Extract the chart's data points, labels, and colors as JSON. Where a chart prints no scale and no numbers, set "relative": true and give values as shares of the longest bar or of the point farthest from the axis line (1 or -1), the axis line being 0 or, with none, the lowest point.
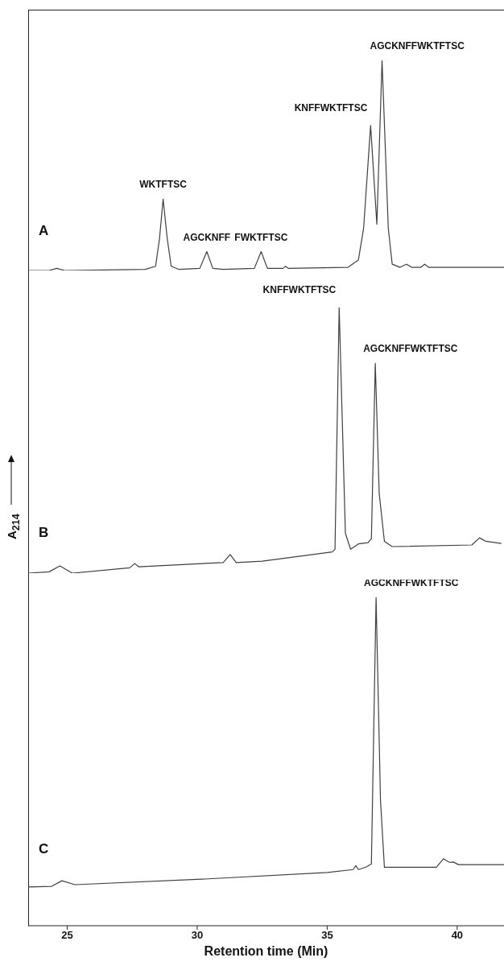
{
  "chart_data": [
    {
      "type": "line",
      "relative": true,
      "xlim": [
        23.5,
        41.8
      ],
      "tick_labels": false,
      "series": [
        {
          "name": "A",
          "color": "#404040",
          "x": [
            23.5,
            24.3,
            24.6,
            24.9,
            28.0,
            28.4,
            28.55,
            28.69,
            28.85,
            29.0,
            29.3,
            30.1,
            30.37,
            30.6,
            31.0,
            32.2,
            32.46,
            32.7,
            33.3,
            33.4,
            33.5,
            35.8,
            36.2,
            36.4,
            36.67,
            36.91,
            37.11,
            37.35,
            37.5,
            37.8,
            38.05,
            38.25,
            38.6,
            38.75,
            38.9,
            41.8
          ],
          "values": [
            0.0,
            0.0,
            0.01,
            0.0,
            0.005,
            0.02,
            0.15,
            0.34,
            0.15,
            0.02,
            0.005,
            0.01,
            0.09,
            0.01,
            0.005,
            0.01,
            0.09,
            0.01,
            0.01,
            0.02,
            0.01,
            0.015,
            0.05,
            0.2,
            0.69,
            0.22,
            1.0,
            0.2,
            0.03,
            0.015,
            0.03,
            0.015,
            0.015,
            0.03,
            0.015,
            0.015
          ]
        }
      ],
      "annotations": [
        {
          "text": "WKTFTSC",
          "x": 28.69,
          "y": 0.34
        },
        {
          "text": "AGCKNFF",
          "x": 30.37,
          "y": 0.09
        },
        {
          "text": "FWKTFTSC",
          "x": 32.46,
          "y": 0.09
        },
        {
          "text": "KNFFWKTFTSC",
          "x": 36.67,
          "y": 0.69
        },
        {
          "text": "AGCKNFFWKTFTSC",
          "x": 37.11,
          "y": 1.0
        }
      ]
    },
    {
      "type": "line",
      "relative": true,
      "xlim": [
        23.5,
        41.8
      ],
      "tick_labels": false,
      "ylabel": "A$_{214}$",
      "series": [
        {
          "name": "B",
          "color": "#404040",
          "x": [
            23.5,
            24.3,
            24.72,
            25.2,
            27.4,
            27.6,
            27.75,
            31.0,
            31.27,
            31.5,
            32.5,
            35.2,
            35.3,
            35.46,
            35.7,
            35.9,
            36.2,
            36.57,
            36.7,
            36.85,
            37.0,
            37.2,
            37.5,
            40.56,
            40.86,
            41.1,
            41.7
          ],
          "values": [
            0.0,
            0.005,
            0.027,
            0.0,
            0.02,
            0.036,
            0.024,
            0.04,
            0.07,
            0.04,
            0.045,
            0.08,
            0.09,
            1.0,
            0.15,
            0.09,
            0.11,
            0.115,
            0.13,
            0.79,
            0.3,
            0.12,
            0.1,
            0.106,
            0.133,
            0.12,
            0.112
          ]
        }
      ],
      "annotations": [
        {
          "text": "KNFFWKTFTSC",
          "x": 35.46,
          "y": 1.0
        },
        {
          "text": "AGCKNFFWKTFTSC",
          "x": 36.85,
          "y": 0.79
        }
      ]
    },
    {
      "type": "line",
      "relative": true,
      "xlim": [
        23.5,
        41.8
      ],
      "tick_labels": "x",
      "xlabel": "Retention time (Min)",
      "xticks": [
        25,
        30,
        35,
        40
      ],
      "series": [
        {
          "name": "C",
          "color": "#404040",
          "x": [
            23.5,
            24.4,
            24.8,
            25.3,
            30.0,
            35.0,
            36.0,
            36.1,
            36.2,
            36.5,
            36.7,
            36.88,
            37.05,
            37.2,
            39.2,
            39.47,
            39.7,
            39.85,
            40.05,
            41.8
          ],
          "values": [
            0.118,
            0.12,
            0.137,
            0.125,
            0.141,
            0.162,
            0.171,
            0.183,
            0.171,
            0.179,
            0.188,
            1.0,
            0.382,
            0.178,
            0.178,
            0.204,
            0.193,
            0.194,
            0.186,
            0.186
          ]
        }
      ],
      "annotations": [
        {
          "text": "AGCKNFFWKTFTSC",
          "x": 36.88,
          "y": 1.0
        }
      ]
    }
  ]
}
